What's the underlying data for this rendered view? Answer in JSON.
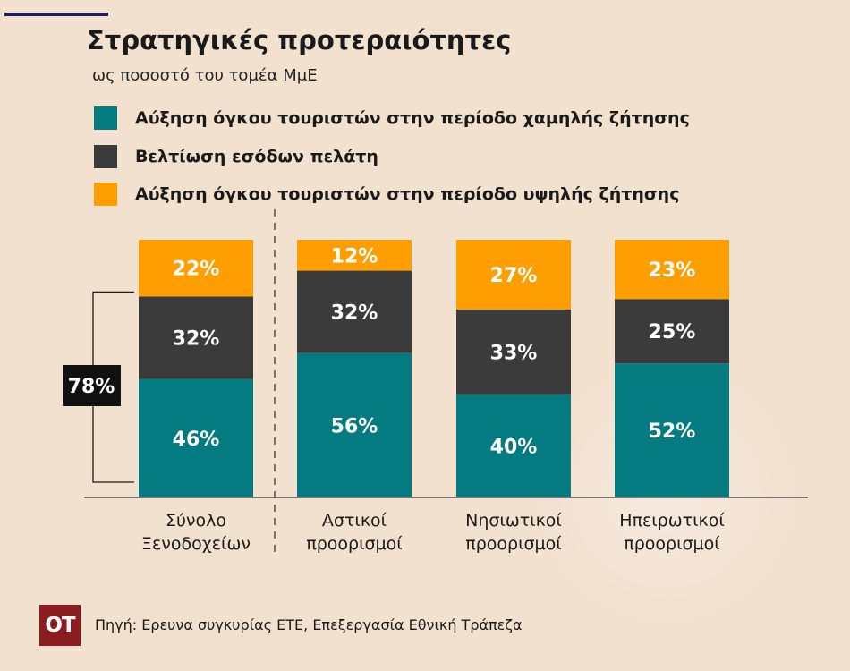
{
  "chart_data": {
    "type": "bar",
    "stacked": true,
    "title": "Στρατηγικές προτεραιότητες",
    "subtitle": "ως ποσοστό του τομέα ΜμΕ",
    "categories": [
      "Σύνολο Ξενοδοχείων",
      "Αστικοί προορισμοί",
      "Νησιωτικοί προορισμοί",
      "Ηπειρωτικοί προορισμοί"
    ],
    "category_lines": [
      [
        "Σύνολο",
        "Ξενοδοχείων"
      ],
      [
        "Αστικοί",
        "προορισμοί"
      ],
      [
        "Νησιωτικοί",
        "προορισμοί"
      ],
      [
        "Ηπειρωτικοί",
        "προορισμοί"
      ]
    ],
    "series": [
      {
        "name": "Αύξηση όγκου τουριστών στην περίοδο χαμηλής ζήτησης",
        "color": "#047b81",
        "values": [
          46,
          56,
          40,
          52
        ],
        "labels": [
          "46%",
          "56%",
          "40%",
          "52%"
        ]
      },
      {
        "name": "Βελτίωση εσόδων πελάτη",
        "color": "#3b3b3b",
        "values": [
          32,
          32,
          33,
          25
        ],
        "labels": [
          "32%",
          "32%",
          "33%",
          "25%"
        ]
      },
      {
        "name": "Αύξηση όγκου τουριστών στην περίοδο υψηλής ζήτησης",
        "color": "#ff9e00",
        "values": [
          22,
          12,
          27,
          23
        ],
        "labels": [
          "22%",
          "12%",
          "27%",
          "23%"
        ]
      }
    ],
    "ylim": [
      0,
      100
    ],
    "grid": false,
    "legend_position": "top-left",
    "annotation": {
      "label": "78%",
      "category": "Σύνολο Ξενοδοχείων",
      "series": [
        "Αύξηση όγκου τουριστών στην περίοδο χαμηλής ζήτησης",
        "Βελτίωση εσόδων πελάτη"
      ]
    },
    "separator_after_category": 0
  },
  "footer": {
    "logo_text": "OT",
    "source": "Πηγή: Ερευνα συγκυρίας ΕΤΕ, Επεξεργασία Εθνική Τράπεζα"
  }
}
